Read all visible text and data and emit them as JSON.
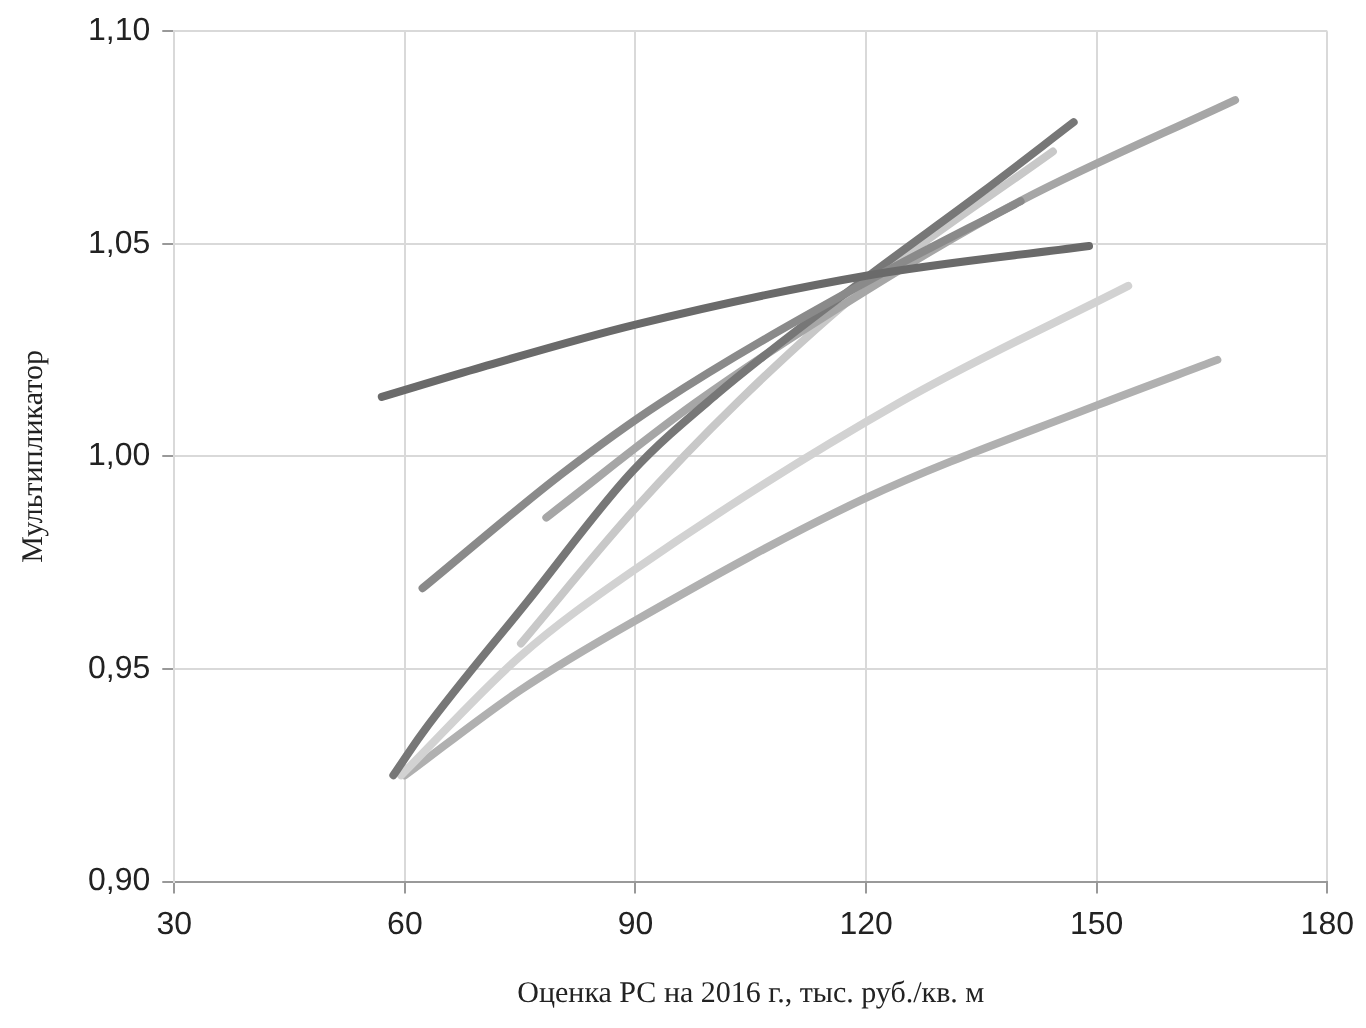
{
  "chart_data": {
    "type": "line",
    "xlabel": "Оценка РС на 2016 г., тыс. руб./кв. м",
    "ylabel": "Мультипликатор",
    "xlim": [
      30,
      180
    ],
    "xticks": [
      30,
      60,
      90,
      120,
      150,
      180
    ],
    "ylim": [
      0.9,
      1.1
    ],
    "yticks": [
      {
        "value": 0.9,
        "label": "0,90"
      },
      {
        "value": 0.95,
        "label": "0,95"
      },
      {
        "value": 1.0,
        "label": "1,00"
      },
      {
        "value": 1.05,
        "label": "1,05"
      },
      {
        "value": 1.1,
        "label": "1,10"
      }
    ],
    "grid": true,
    "legend": false,
    "marker": "none",
    "line_style": "solid",
    "series": [
      {
        "color": "#6a6a6a",
        "x": [
          57,
          70,
          90,
          120,
          149
        ],
        "values": [
          1.014,
          1.021,
          1.031,
          1.0425,
          1.0495
        ]
      },
      {
        "color": "#8a8a8a",
        "x": [
          62.3,
          80.5,
          93.3,
          120,
          140.1
        ],
        "values": [
          0.969,
          0.996,
          1.0126,
          1.041,
          1.06
        ]
      },
      {
        "color": "#777777",
        "x": [
          58.5,
          62.3,
          76,
          89.6,
          100.5,
          120,
          135,
          147
        ],
        "values": [
          0.925,
          0.935,
          0.966,
          0.9965,
          1.0145,
          1.042,
          1.062,
          1.0786
        ]
      },
      {
        "color": "#a6a6a6",
        "x": [
          78.4,
          97.8,
          120,
          140,
          168
        ],
        "values": [
          0.9856,
          1.0126,
          1.039,
          1.06,
          1.0838
        ]
      },
      {
        "color": "#c8c8c8",
        "x": [
          75.1,
          89.6,
          103.2,
          120,
          144.3
        ],
        "values": [
          0.956,
          0.987,
          1.0126,
          1.04,
          1.0717
        ]
      },
      {
        "color": "#d2d2d2",
        "x": [
          59.5,
          75,
          89.6,
          124.3,
          154.1
        ],
        "values": [
          0.925,
          0.953,
          0.973,
          1.0126,
          1.0401
        ]
      },
      {
        "color": "#b0b0b0",
        "x": [
          60,
          75,
          89.6,
          119.7,
          150,
          165.7
        ],
        "values": [
          0.925,
          0.945,
          0.961,
          0.99,
          1.012,
          1.0227
        ]
      }
    ]
  }
}
